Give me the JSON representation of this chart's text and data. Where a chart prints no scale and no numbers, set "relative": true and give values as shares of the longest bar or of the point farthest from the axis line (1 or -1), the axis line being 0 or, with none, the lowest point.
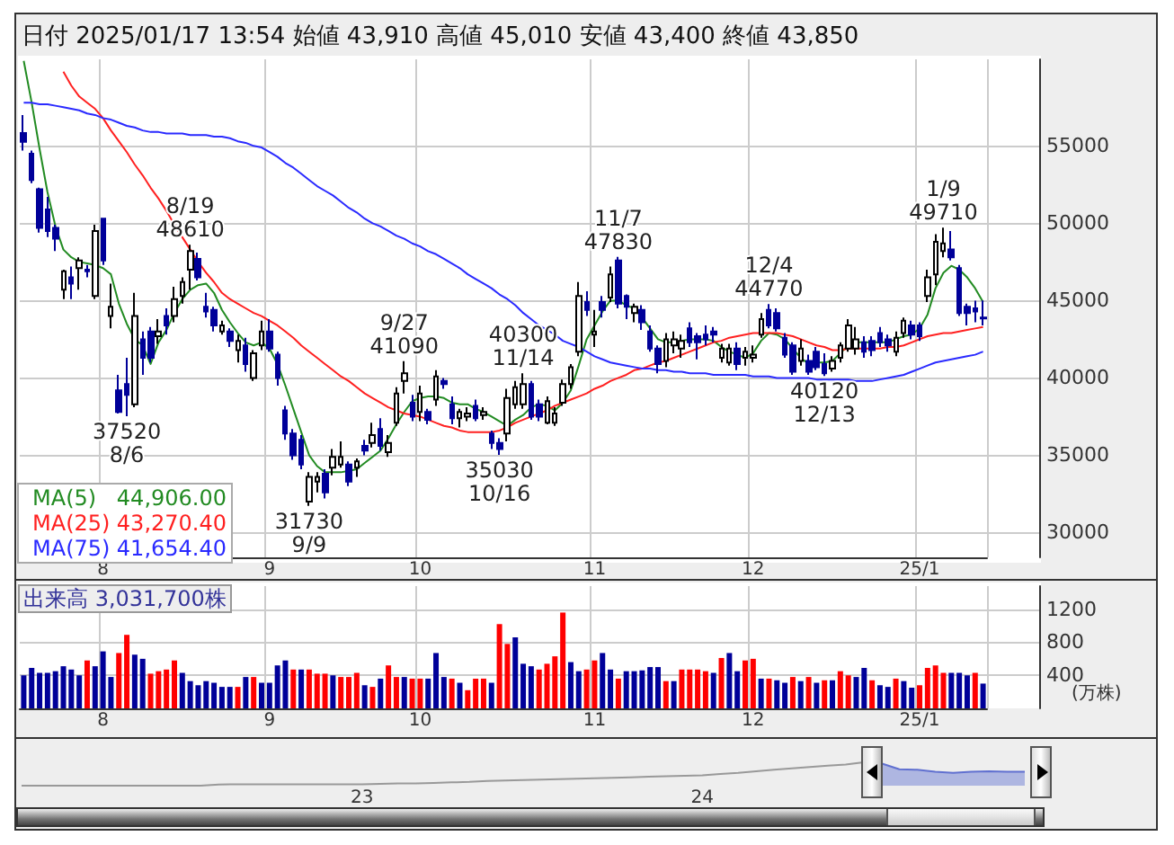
{
  "chart_data": [
    {
      "type": "candlestick",
      "title": "日付 2025/01/17 13:54 始値 43,910 高値 45,010 安値 43,400 終値 43,850",
      "categories": [
        null,
        null,
        null,
        null,
        null,
        null,
        null,
        null,
        null,
        null,
        "8",
        null,
        null,
        null,
        null,
        null,
        null,
        null,
        null,
        null,
        null,
        null,
        null,
        null,
        null,
        null,
        null,
        null,
        null,
        null,
        null,
        "9",
        null,
        null,
        null,
        null,
        null,
        null,
        null,
        null,
        null,
        null,
        null,
        null,
        null,
        null,
        null,
        null,
        null,
        null,
        "10",
        null,
        null,
        null,
        null,
        null,
        null,
        null,
        null,
        null,
        null,
        null,
        null,
        null,
        null,
        null,
        null,
        null,
        null,
        null,
        null,
        null,
        "11",
        null,
        null,
        null,
        null,
        null,
        null,
        null,
        null,
        null,
        null,
        null,
        null,
        null,
        null,
        null,
        null,
        null,
        null,
        null,
        "12",
        null,
        null,
        null,
        null,
        null,
        null,
        null,
        null,
        null,
        null,
        null,
        null,
        null,
        null,
        null,
        null,
        null,
        null,
        null,
        null,
        "25/1",
        null,
        null,
        null,
        null,
        null,
        null,
        null,
        null
      ],
      "ohlc": [
        [
          55840,
          57000,
          54700,
          55270
        ],
        [
          54500,
          54700,
          52600,
          52800
        ],
        [
          52200,
          52300,
          49400,
          49700
        ],
        [
          50900,
          51700,
          49100,
          49500
        ],
        [
          49700,
          49900,
          48200,
          49000
        ],
        [
          45700,
          47000,
          45100,
          46900
        ],
        [
          46500,
          47200,
          45100,
          46100
        ],
        [
          47100,
          47800,
          45700,
          47600
        ],
        [
          47000,
          47300,
          46500,
          46900
        ],
        [
          45300,
          49900,
          45100,
          49500
        ],
        [
          50300,
          50300,
          47300,
          47600
        ],
        [
          44000,
          46100,
          43200,
          44600
        ],
        [
          39200,
          40200,
          37700,
          37800
        ],
        [
          39600,
          41300,
          37520,
          38900
        ],
        [
          38300,
          45500,
          38100,
          44000
        ],
        [
          42500,
          43000,
          40200,
          41300
        ],
        [
          43000,
          43300,
          41000,
          41300
        ],
        [
          42700,
          43800,
          42200,
          43000
        ],
        [
          44000,
          44500,
          42800,
          43400
        ],
        [
          44000,
          45900,
          43600,
          45100
        ],
        [
          45300,
          46500,
          44800,
          46200
        ],
        [
          47000,
          48610,
          45700,
          48200
        ],
        [
          47700,
          48100,
          46300,
          46500
        ],
        [
          44600,
          45500,
          43900,
          44300
        ],
        [
          44400,
          44600,
          43000,
          43400
        ],
        [
          43000,
          43700,
          42800,
          43400
        ],
        [
          43000,
          43200,
          42000,
          42400
        ],
        [
          41800,
          42800,
          41000,
          42400
        ],
        [
          42100,
          42600,
          40400,
          40900
        ],
        [
          40000,
          41800,
          39800,
          41600
        ],
        [
          42100,
          43700,
          41800,
          43000
        ],
        [
          43000,
          43800,
          41700,
          41900
        ],
        [
          41500,
          41700,
          39500,
          40000
        ],
        [
          37900,
          38200,
          36000,
          36400
        ],
        [
          36400,
          36700,
          34700,
          35000
        ],
        [
          36000,
          36300,
          34100,
          34400
        ],
        [
          32000,
          33900,
          31730,
          33600
        ],
        [
          33300,
          33900,
          32600,
          33600
        ],
        [
          33800,
          34100,
          32200,
          32600
        ],
        [
          34200,
          35400,
          33700,
          34900
        ],
        [
          34400,
          35900,
          34200,
          34900
        ],
        [
          34400,
          34600,
          33000,
          33300
        ],
        [
          34200,
          34800,
          33600,
          34600
        ],
        [
          35600,
          36000,
          35000,
          35300
        ],
        [
          35800,
          37100,
          35500,
          36300
        ],
        [
          36700,
          37400,
          35300,
          35600
        ],
        [
          35200,
          36300,
          34900,
          35800
        ],
        [
          37100,
          39400,
          36900,
          39000
        ],
        [
          39800,
          41090,
          39000,
          40300
        ],
        [
          38400,
          38900,
          37200,
          37500
        ],
        [
          37800,
          39500,
          37200,
          39000
        ],
        [
          37800,
          38000,
          37000,
          37300
        ],
        [
          38600,
          40500,
          38200,
          40100
        ],
        [
          39800,
          40000,
          39300,
          39600
        ],
        [
          38300,
          38800,
          37000,
          37400
        ],
        [
          37400,
          38000,
          36800,
          37800
        ],
        [
          37500,
          38100,
          37200,
          37700
        ],
        [
          38200,
          38600,
          37200,
          37400
        ],
        [
          37600,
          38100,
          37300,
          37800
        ],
        [
          36400,
          36600,
          35400,
          35800
        ],
        [
          35800,
          36100,
          35030,
          35400
        ],
        [
          36400,
          39300,
          35900,
          38700
        ],
        [
          38300,
          39800,
          38000,
          39400
        ],
        [
          38300,
          40300,
          38000,
          39600
        ],
        [
          39600,
          39800,
          37300,
          37500
        ],
        [
          38300,
          38600,
          37200,
          37500
        ],
        [
          37100,
          38800,
          37000,
          38500
        ],
        [
          37100,
          38100,
          36900,
          37700
        ],
        [
          38400,
          39900,
          38200,
          39600
        ],
        [
          39600,
          40900,
          39300,
          40700
        ],
        [
          41700,
          46200,
          41400,
          45300
        ],
        [
          44900,
          45600,
          44000,
          44400
        ],
        [
          42800,
          44400,
          42000,
          43000
        ],
        [
          44900,
          45300,
          43900,
          44400
        ],
        [
          45200,
          47200,
          44900,
          46700
        ],
        [
          47600,
          47830,
          44500,
          44800
        ],
        [
          45300,
          45400,
          43800,
          44600
        ],
        [
          44200,
          44800,
          43600,
          44600
        ],
        [
          44400,
          44700,
          43100,
          43600
        ],
        [
          43000,
          43400,
          41700,
          41900
        ],
        [
          41900,
          42100,
          40300,
          40900
        ],
        [
          41100,
          42900,
          40700,
          42500
        ],
        [
          42100,
          43000,
          41600,
          42500
        ],
        [
          41900,
          42800,
          41300,
          42400
        ],
        [
          43200,
          43600,
          42000,
          42300
        ],
        [
          42700,
          42900,
          41200,
          42300
        ],
        [
          42800,
          43400,
          42100,
          42500
        ],
        [
          43000,
          43300,
          42300,
          42800
        ],
        [
          41300,
          42200,
          41000,
          41900
        ],
        [
          41000,
          42200,
          40800,
          41900
        ],
        [
          41900,
          42300,
          40500,
          40900
        ],
        [
          41300,
          42000,
          40800,
          41700
        ],
        [
          41300,
          42100,
          41000,
          41500
        ],
        [
          42800,
          44200,
          42600,
          43800
        ],
        [
          44400,
          44770,
          43200,
          43400
        ],
        [
          44200,
          44500,
          43000,
          43200
        ],
        [
          42600,
          42900,
          41300,
          41500
        ],
        [
          42100,
          42300,
          40200,
          40400
        ],
        [
          41100,
          42500,
          40800,
          41900
        ],
        [
          41100,
          41500,
          40200,
          40400
        ],
        [
          41700,
          42000,
          40500,
          40700
        ],
        [
          40900,
          41600,
          40120,
          40300
        ],
        [
          40600,
          41400,
          40400,
          41100
        ],
        [
          41300,
          42300,
          41000,
          42100
        ],
        [
          41900,
          43800,
          41700,
          43400
        ],
        [
          41900,
          43300,
          41500,
          42500
        ],
        [
          42300,
          42700,
          41300,
          41700
        ],
        [
          42400,
          42700,
          41400,
          41800
        ],
        [
          42900,
          43300,
          42000,
          42300
        ],
        [
          42500,
          42800,
          41700,
          42100
        ],
        [
          41700,
          43000,
          41400,
          42600
        ],
        [
          42900,
          43900,
          42600,
          43700
        ],
        [
          43400,
          43700,
          42500,
          42800
        ],
        [
          43400,
          43600,
          42400,
          42700
        ],
        [
          45300,
          47000,
          44900,
          46500
        ],
        [
          46700,
          49300,
          46000,
          48800
        ],
        [
          48200,
          49710,
          47800,
          48700
        ],
        [
          48300,
          49500,
          47600,
          47800
        ],
        [
          47100,
          47300,
          44000,
          44200
        ],
        [
          44600,
          44800,
          43400,
          44200
        ],
        [
          44500,
          45000,
          43600,
          44300
        ],
        [
          43910,
          45010,
          43400,
          43850
        ]
      ],
      "series": [
        {
          "type": "line",
          "name": "MA(5) 44,906.00",
          "color": "#228b22",
          "values": [
            60500,
            57800,
            54800,
            52000,
            49800,
            48300,
            47800,
            47500,
            47400,
            47300,
            47100,
            46700,
            44800,
            43500,
            42500,
            42100,
            40900,
            42300,
            43100,
            44200,
            45100,
            45700,
            46000,
            46100,
            45500,
            44400,
            43600,
            42900,
            42300,
            42100,
            42300,
            41900,
            40900,
            39500,
            38000,
            36500,
            35000,
            34300,
            33900,
            33900,
            33900,
            34000,
            34100,
            34500,
            34900,
            35300,
            36100,
            37000,
            37800,
            38500,
            38700,
            38800,
            38800,
            38700,
            38400,
            38300,
            38300,
            38000,
            37800,
            37500,
            37200,
            36900,
            37300,
            37600,
            38100,
            38300,
            38200,
            37900,
            38400,
            39200,
            40800,
            42500,
            43400,
            44300,
            45000,
            45000,
            44700,
            44500,
            43900,
            43200,
            42500,
            42300,
            42300,
            42400,
            42500,
            42500,
            42500,
            42400,
            42000,
            41700,
            41500,
            41300,
            41600,
            42400,
            42900,
            42800,
            42500,
            41900,
            41300,
            40900,
            41000,
            41000,
            41100,
            41600,
            42100,
            42300,
            42300,
            42300,
            42300,
            42300,
            42500,
            42700,
            42800,
            43200,
            44100,
            45800,
            46800,
            47250,
            47000,
            46500,
            45800,
            44900
          ]
        },
        {
          "type": "line",
          "name": "MA(25) 43,270.40",
          "color": "#ff2020",
          "values": [
            null,
            null,
            null,
            null,
            null,
            59800,
            58900,
            58200,
            57800,
            57400,
            56800,
            56000,
            55300,
            54600,
            53800,
            53100,
            52300,
            51600,
            50800,
            49900,
            49100,
            48300,
            47500,
            46800,
            46200,
            45500,
            45100,
            44800,
            44500,
            44200,
            44000,
            43700,
            43400,
            43000,
            42600,
            42100,
            41700,
            41300,
            40900,
            40500,
            40100,
            39800,
            39400,
            39000,
            38700,
            38400,
            38100,
            37900,
            37700,
            37600,
            37500,
            37300,
            37100,
            36900,
            36800,
            36600,
            36500,
            36500,
            36500,
            36500,
            36600,
            36800,
            37100,
            37300,
            37500,
            37700,
            37900,
            38200,
            38400,
            38600,
            38800,
            39000,
            39300,
            39500,
            39800,
            40000,
            40200,
            40500,
            40600,
            40800,
            41000,
            41100,
            41300,
            41500,
            41700,
            41900,
            42100,
            42300,
            42400,
            42600,
            42700,
            42800,
            42900,
            42900,
            42900,
            42900,
            42800,
            42700,
            42500,
            42300,
            42100,
            42000,
            41800,
            41800,
            41900,
            41900,
            41900,
            41900,
            41900,
            42000,
            42000,
            42100,
            42300,
            42500,
            42700,
            42800,
            42900,
            42900,
            43000,
            43100,
            43200,
            43300
          ]
        },
        {
          "type": "line",
          "name": "MA(75) 41,654.40",
          "color": "#2a2aff",
          "values": [
            57800,
            57800,
            57700,
            57700,
            57600,
            57500,
            57400,
            57300,
            57100,
            57000,
            56800,
            56700,
            56500,
            56300,
            56200,
            56000,
            55900,
            55900,
            55800,
            55800,
            55800,
            55700,
            55700,
            55700,
            55600,
            55600,
            55500,
            55300,
            55200,
            55000,
            54900,
            54600,
            54300,
            53900,
            53600,
            53200,
            52800,
            52400,
            52100,
            51800,
            51400,
            51000,
            50700,
            50300,
            50000,
            49800,
            49500,
            49200,
            49000,
            48700,
            48500,
            48200,
            48000,
            47700,
            47400,
            47100,
            46700,
            46400,
            46100,
            45800,
            45400,
            45100,
            44700,
            44200,
            43800,
            43400,
            43100,
            42800,
            42400,
            42200,
            42000,
            41700,
            41400,
            41200,
            41000,
            40900,
            40800,
            40700,
            40600,
            40600,
            40500,
            40500,
            40400,
            40400,
            40300,
            40300,
            40300,
            40200,
            40200,
            40200,
            40200,
            40200,
            40100,
            40100,
            40100,
            40000,
            40000,
            40000,
            40000,
            40000,
            39900,
            39900,
            39900,
            39900,
            39900,
            39800,
            39800,
            39800,
            39900,
            40000,
            40100,
            40200,
            40400,
            40600,
            40800,
            41000,
            41100,
            41200,
            41300,
            41400,
            41500,
            41700
          ]
        }
      ],
      "annotations": [
        {
          "text": "37520\n8/6",
          "y": 37520
        },
        {
          "text": "8/19\n48610",
          "y": 48610
        },
        {
          "text": "31730\n9/9",
          "y": 31730
        },
        {
          "text": "9/27\n41090",
          "y": 41090
        },
        {
          "text": "35030\n10/16",
          "y": 35030
        },
        {
          "text": "11/7\n47830",
          "y": 47830
        },
        {
          "text": "40300\n11/14",
          "y": 40300
        },
        {
          "text": "12/4\n44770",
          "y": 44770
        },
        {
          "text": "40120\n12/13",
          "y": 40120
        },
        {
          "text": "1/9\n49710",
          "y": 49710
        }
      ],
      "ylim": [
        28400,
        60600
      ],
      "yticks": [
        30000,
        35000,
        40000,
        45000,
        50000,
        55000
      ],
      "grid": true,
      "legend": "bottom left",
      "marker": "none"
    },
    {
      "type": "bar",
      "title": "出来高 3,031,700株",
      "ylabel": "(万株)",
      "categories": [
        null,
        null,
        null,
        null,
        null,
        null,
        null,
        null,
        null,
        null,
        "8",
        null,
        null,
        null,
        null,
        null,
        null,
        null,
        null,
        null,
        null,
        null,
        null,
        null,
        null,
        null,
        null,
        null,
        null,
        null,
        null,
        "9",
        null,
        null,
        null,
        null,
        null,
        null,
        null,
        null,
        null,
        null,
        null,
        null,
        null,
        null,
        null,
        null,
        null,
        null,
        "10",
        null,
        null,
        null,
        null,
        null,
        null,
        null,
        null,
        null,
        null,
        null,
        null,
        null,
        null,
        null,
        null,
        null,
        null,
        null,
        null,
        null,
        "11",
        null,
        null,
        null,
        null,
        null,
        null,
        null,
        null,
        null,
        null,
        null,
        null,
        null,
        null,
        null,
        null,
        null,
        null,
        null,
        "12",
        null,
        null,
        null,
        null,
        null,
        null,
        null,
        null,
        null,
        null,
        null,
        null,
        null,
        null,
        null,
        null,
        null,
        null,
        null,
        null,
        "25/1",
        null,
        null,
        null,
        null,
        null,
        null,
        null,
        null
      ],
      "values": [
        400,
        490,
        430,
        430,
        450,
        510,
        470,
        400,
        580,
        510,
        690,
        380,
        670,
        890,
        650,
        600,
        420,
        450,
        470,
        580,
        430,
        330,
        280,
        330,
        310,
        260,
        260,
        260,
        380,
        380,
        310,
        310,
        520,
        580,
        470,
        470,
        470,
        420,
        420,
        400,
        380,
        380,
        430,
        280,
        260,
        360,
        520,
        380,
        380,
        360,
        360,
        360,
        670,
        380,
        360,
        310,
        220,
        360,
        360,
        310,
        1020,
        780,
        860,
        540,
        510,
        470,
        540,
        630,
        1160,
        560,
        450,
        470,
        580,
        670,
        470,
        360,
        450,
        450,
        460,
        500,
        500,
        330,
        330,
        470,
        470,
        470,
        450,
        430,
        610,
        670,
        450,
        580,
        600,
        360,
        360,
        340,
        310,
        380,
        330,
        380,
        310,
        340,
        340,
        450,
        400,
        380,
        490,
        340,
        280,
        260,
        360,
        330,
        250,
        280,
        490,
        520,
        430,
        430,
        430,
        400,
        430,
        300
      ],
      "colors": [
        "#000099",
        "#000099",
        "#000099",
        "#000099",
        "#000099",
        "#000099",
        "#000099",
        "#000099",
        "#ff0000",
        "#000099",
        "#000099",
        "#000099",
        "#ff0000",
        "#ff0000",
        "#000099",
        "#000099",
        "#ff0000",
        "#ff0000",
        "#ff0000",
        "#ff0000",
        "#000099",
        "#000099",
        "#000099",
        "#000099",
        "#000099",
        "#000099",
        "#000099",
        "#ff0000",
        "#000099",
        "#ff0000",
        "#000099",
        "#000099",
        "#000099",
        "#000099",
        "#ff0000",
        "#000099",
        "#ff0000",
        "#ff0000",
        "#ff0000",
        "#000099",
        "#ff0000",
        "#ff0000",
        "#ff0000",
        "#000099",
        "#ff0000",
        "#000099",
        "#ff0000",
        "#ff0000",
        "#000099",
        "#ff0000",
        "#ff0000",
        "#000099",
        "#000099",
        "#000099",
        "#ff0000",
        "#000099",
        "#ff0000",
        "#ff0000",
        "#ff0000",
        "#000099",
        "#ff0000",
        "#ff0000",
        "#000099",
        "#000099",
        "#000099",
        "#ff0000",
        "#ff0000",
        "#ff0000",
        "#ff0000",
        "#000099",
        "#000099",
        "#ff0000",
        "#ff0000",
        "#000099",
        "#000099",
        "#ff0000",
        "#000099",
        "#000099",
        "#000099",
        "#000099",
        "#000099",
        "#ff0000",
        "#000099",
        "#ff0000",
        "#ff0000",
        "#ff0000",
        "#ff0000",
        "#000099",
        "#ff0000",
        "#000099",
        "#000099",
        "#ff0000",
        "#ff0000",
        "#000099",
        "#ff0000",
        "#000099",
        "#000099",
        "#ff0000",
        "#000099",
        "#ff0000",
        "#000099",
        "#ff0000",
        "#000099",
        "#ff0000",
        "#ff0000",
        "#000099",
        "#000099",
        "#ff0000",
        "#000099",
        "#000099",
        "#ff0000",
        "#000099",
        "#000099",
        "#ff0000",
        "#ff0000",
        "#ff0000",
        "#ff0000",
        "#000099",
        "#000099",
        "#000099",
        "#ff0000",
        "#000099"
      ],
      "ylim": [
        0,
        1480
      ],
      "yticks": [
        400,
        800,
        1200
      ],
      "grid": true
    },
    {
      "type": "line",
      "relative": true,
      "categories": [
        null,
        null,
        null,
        null,
        null,
        null,
        null,
        null,
        null,
        null,
        null,
        null,
        null,
        null,
        null,
        null,
        null,
        null,
        null,
        "23",
        null,
        null,
        null,
        null,
        null,
        null,
        null,
        null,
        null,
        null,
        null,
        null,
        null,
        null,
        null,
        null,
        null,
        null,
        "24",
        null,
        null,
        null,
        null,
        null,
        null,
        null,
        null,
        null,
        null,
        null,
        null,
        null,
        null,
        null,
        null,
        null,
        null
      ],
      "series": [
        {
          "type": "line",
          "color": "#999999",
          "values": [
            0,
            0,
            0,
            0,
            0,
            0,
            0,
            0,
            0,
            0,
            0,
            0.05,
            0.06,
            0.06,
            0.06,
            0.06,
            0.06,
            0.06,
            0.06,
            0.06,
            0.08,
            0.1,
            0.1,
            0.12,
            0.14,
            0.16,
            0.2,
            0.22,
            0.24,
            0.26,
            0.28,
            0.3,
            0.32,
            0.34,
            0.36,
            0.38,
            0.4,
            0.42,
            0.44,
            0.5,
            0.55,
            0.62,
            0.68,
            0.74,
            0.8,
            0.86,
            0.9,
            1,
            0.95,
            null,
            null,
            null,
            null,
            null,
            null,
            null,
            null
          ]
        },
        {
          "type": "area",
          "color": "#6070d0",
          "values": [
            null,
            null,
            null,
            null,
            null,
            null,
            null,
            null,
            null,
            null,
            null,
            null,
            null,
            null,
            null,
            null,
            null,
            null,
            null,
            null,
            null,
            null,
            null,
            null,
            null,
            null,
            null,
            null,
            null,
            null,
            null,
            null,
            null,
            null,
            null,
            null,
            null,
            null,
            null,
            null,
            null,
            null,
            null,
            null,
            null,
            null,
            null,
            null,
            0.95,
            0.7,
            0.68,
            0.6,
            0.55,
            0.6,
            0.62,
            0.6,
            0.6
          ]
        }
      ]
    }
  ]
}
